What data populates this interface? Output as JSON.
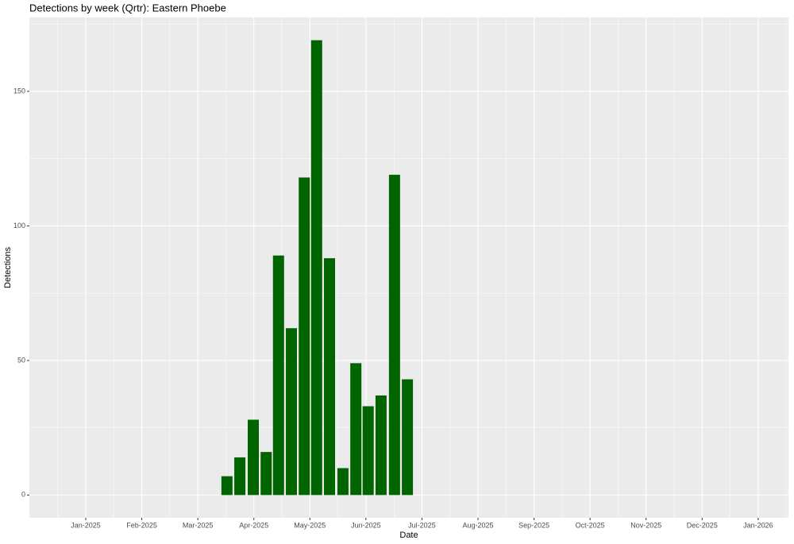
{
  "chart_data": {
    "type": "bar",
    "title": "Detections by week (Qrtr): Eastern Phoebe",
    "xlabel": "Date",
    "ylabel": "Detections",
    "x": [
      2.52,
      2.75,
      2.99,
      3.22,
      3.44,
      3.67,
      3.9,
      4.12,
      4.35,
      4.59,
      4.82,
      5.04,
      5.27,
      5.51,
      5.74
    ],
    "values": [
      7,
      14,
      28,
      16,
      89,
      62,
      118,
      169,
      88,
      10,
      49,
      33,
      37,
      119,
      43
    ],
    "color": "#006400",
    "xlim": [
      -1.006,
      12.54
    ],
    "xticks": [
      {
        "value": 0,
        "label": "Jan-2025"
      },
      {
        "value": 1,
        "label": "Feb-2025"
      },
      {
        "value": 2,
        "label": "Mar-2025"
      },
      {
        "value": 3,
        "label": "Apr-2025"
      },
      {
        "value": 4,
        "label": "May-2025"
      },
      {
        "value": 5,
        "label": "Jun-2025"
      },
      {
        "value": 6,
        "label": "Jul-2025"
      },
      {
        "value": 7,
        "label": "Aug-2025"
      },
      {
        "value": 8,
        "label": "Sep-2025"
      },
      {
        "value": 9,
        "label": "Oct-2025"
      },
      {
        "value": 10,
        "label": "Nov-2025"
      },
      {
        "value": 11,
        "label": "Dec-2025"
      },
      {
        "value": 12,
        "label": "Jan-2026"
      }
    ],
    "ylim": [
      -8.45,
      177.45
    ],
    "yticks": [
      0,
      50,
      100,
      150
    ],
    "grid": true
  }
}
